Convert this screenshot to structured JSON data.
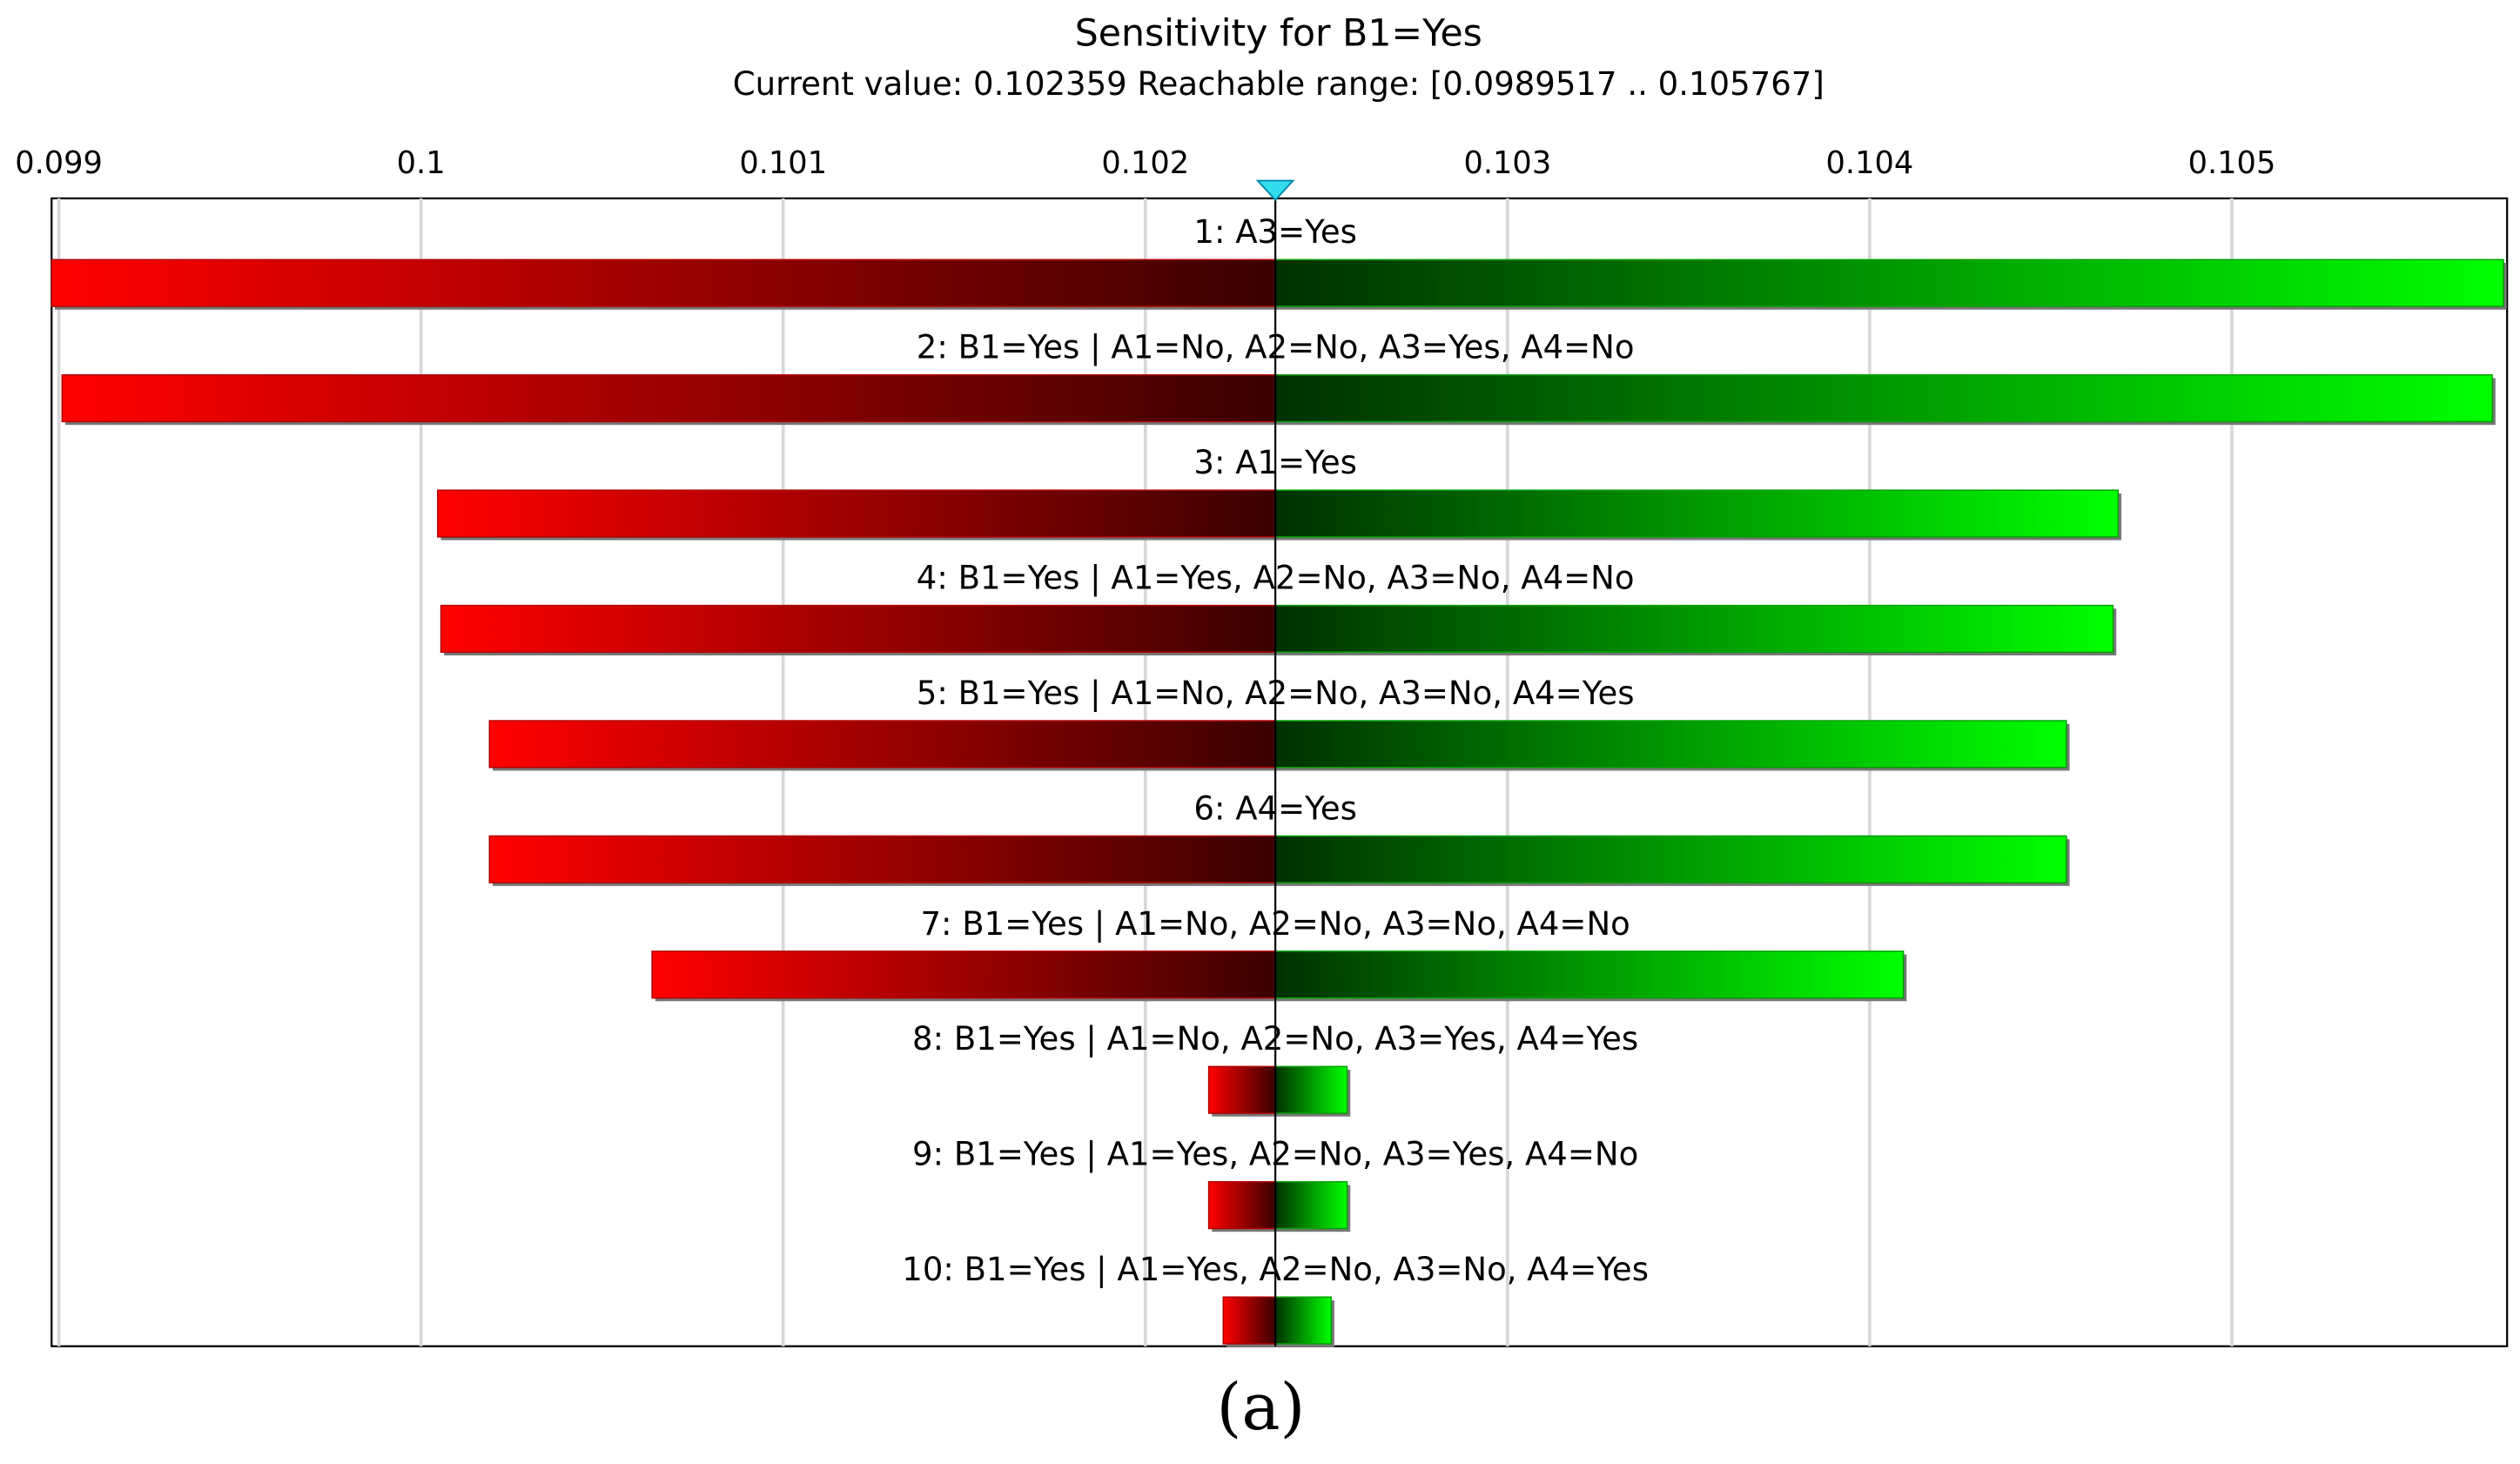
{
  "chart_data": {
    "type": "tornado",
    "title": "Sensitivity for B1=Yes",
    "subtitle": "Current value: 0.102359  Reachable range: [0.0989517 .. 0.105767]",
    "caption": "(a)",
    "current": 0.102359,
    "categories": [
      "1: A3=Yes",
      "2: B1=Yes | A1=No, A2=No, A3=Yes, A4=No",
      "3: A1=Yes",
      "4: B1=Yes | A1=Yes, A2=No, A3=No, A4=No",
      "5: B1=Yes | A1=No, A2=No, A3=No, A4=Yes",
      "6: A4=Yes",
      "7: B1=Yes | A1=No, A2=No, A3=No, A4=No",
      "8: B1=Yes | A1=No, A2=No, A3=Yes, A4=Yes",
      "9: B1=Yes | A1=Yes, A2=No, A3=Yes, A4=No",
      "10: B1=Yes | A1=Yes, A2=No, A3=No, A4=Yes"
    ],
    "low": [
      0.09898,
      0.099009,
      0.100046,
      0.100055,
      0.100189,
      0.100189,
      0.100638,
      0.102175,
      0.102175,
      0.102215
    ],
    "high": [
      0.10575,
      0.105719,
      0.104686,
      0.104672,
      0.104543,
      0.104543,
      0.104093,
      0.102557,
      0.102557,
      0.102513
    ],
    "low_color": "#ff0000",
    "high_color": "#00ff00",
    "xlim": [
      0.09898,
      0.10576
    ],
    "xticks": [
      0.099,
      0.1,
      0.101,
      0.102,
      0.103,
      0.104,
      0.105
    ],
    "grid": true
  }
}
